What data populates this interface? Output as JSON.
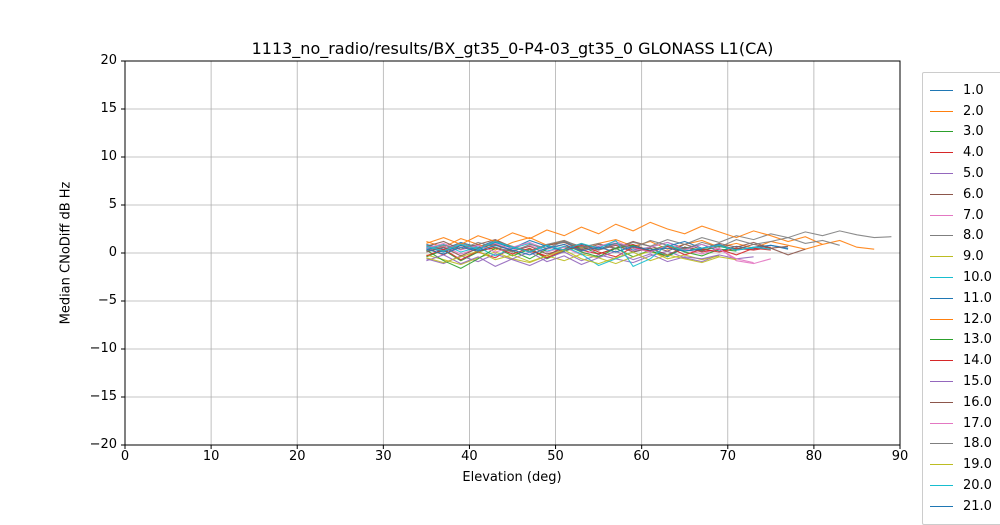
{
  "figure": {
    "title": "1113_no_radio/results/BX_gt35_0-P4-03_gt35_0 GLONASS L1(CA)",
    "xlabel": "Elevation (deg)",
    "ylabel": "Median CNoDiff dB Hz"
  },
  "style": {
    "grid_color": "#b0b0b0",
    "spine_color": "#000000",
    "legend_border_color": "#cccccc",
    "background_color": "#ffffff"
  },
  "chart_data": {
    "type": "line",
    "title": "1113_no_radio/results/BX_gt35_0-P4-03_gt35_0 GLONASS L1(CA)",
    "xlabel": "Elevation (deg)",
    "ylabel": "Median CNoDiff dB Hz",
    "xlim": [
      0,
      90
    ],
    "ylim": [
      -20,
      20
    ],
    "x_ticks": [
      0,
      10,
      20,
      30,
      40,
      50,
      60,
      70,
      80,
      90
    ],
    "x_tick_labels": [
      "0",
      "10",
      "20",
      "30",
      "40",
      "50",
      "60",
      "70",
      "80",
      "90"
    ],
    "y_ticks": [
      -20,
      -15,
      -10,
      -5,
      0,
      5,
      10,
      15,
      20
    ],
    "y_tick_labels": [
      "−20",
      "−15",
      "−10",
      "−5",
      "0",
      "5",
      "10",
      "15",
      "20"
    ],
    "grid": true,
    "legend_position": "outside-right",
    "x_start": 35,
    "x_step": 2,
    "series": [
      {
        "name": "1.0",
        "color": "#1f77b4",
        "y": [
          0.9,
          0.4,
          1.1,
          0.6,
          1.3,
          0.5,
          0.2,
          0.8,
          1.2,
          0.4,
          0.7,
          1.0,
          0.3,
          0.6,
          1.1,
          0.5,
          0.9,
          0.2,
          0.7,
          0.4,
          0.8,
          0.5
        ]
      },
      {
        "name": "2.0",
        "color": "#ff7f0e",
        "y": [
          1.2,
          0.6,
          1.5,
          0.9,
          0.3,
          1.1,
          1.6,
          0.8,
          1.3,
          0.5,
          1.0,
          1.4,
          0.7,
          1.2,
          0.4,
          0.9,
          1.3,
          0.6,
          1.0,
          0.5,
          1.2,
          0.8,
          0.4,
          0.9
        ]
      },
      {
        "name": "3.0",
        "color": "#2ca02c",
        "y": [
          -0.4,
          0.3,
          -0.8,
          0.1,
          0.6,
          -0.3,
          0.4,
          -0.6,
          0.2,
          0.7,
          -0.1,
          0.5,
          -0.4,
          0.3,
          0.8,
          0.1,
          -0.3,
          0.4,
          0.2
        ]
      },
      {
        "name": "4.0",
        "color": "#d62728",
        "y": [
          0.5,
          -0.2,
          0.8,
          0.1,
          -0.5,
          0.6,
          0.2,
          -0.3,
          0.7,
          0.3,
          -0.1,
          0.5,
          0.9,
          0.2,
          -0.4,
          0.6,
          0.1,
          0.4,
          -0.2,
          0.5,
          0.3
        ]
      },
      {
        "name": "5.0",
        "color": "#9467bd",
        "y": [
          -0.6,
          -1.1,
          -0.3,
          -0.9,
          -0.1,
          -0.7,
          -1.3,
          -0.5,
          0.1,
          -0.8,
          -0.2,
          -0.6,
          -1.0,
          -0.3,
          0.2,
          -0.5,
          -0.9,
          -0.2,
          -0.6,
          -0.4
        ]
      },
      {
        "name": "6.0",
        "color": "#8c564b",
        "y": [
          0.7,
          1.2,
          0.4,
          0.9,
          1.4,
          0.6,
          0.1,
          0.8,
          1.1,
          0.3,
          0.9,
          0.5,
          1.2,
          0.7,
          0.2,
          0.9,
          0.4,
          1.0,
          0.6,
          1.1,
          0.5,
          -0.2,
          0.4
        ]
      },
      {
        "name": "7.0",
        "color": "#e377c2",
        "y": [
          0.2,
          0.7,
          -0.1,
          0.5,
          1.0,
          0.3,
          0.8,
          0.1,
          0.6,
          -0.2,
          0.4,
          0.9,
          0.2,
          0.6,
          1.1,
          0.4,
          -0.1,
          0.5,
          -0.8,
          -1.1,
          -0.6
        ]
      },
      {
        "name": "8.0",
        "color": "#7f7f7f",
        "y": [
          0.8,
          0.3,
          1.0,
          0.5,
          1.2,
          0.7,
          0.2,
          0.9,
          1.3,
          0.6,
          1.0,
          0.4,
          1.1,
          0.7,
          1.4,
          0.9,
          1.6,
          1.1,
          1.8,
          1.4,
          2.0,
          1.6,
          2.2,
          1.8,
          2.3,
          1.9,
          1.6,
          1.7
        ]
      },
      {
        "name": "9.0",
        "color": "#bcbd22",
        "y": [
          -0.2,
          -0.7,
          -1.2,
          -0.5,
          0.1,
          -0.6,
          -1.0,
          -0.3,
          -0.8,
          -0.1,
          -0.5,
          -1.1,
          -0.4,
          0.2,
          -0.6,
          -0.2,
          -0.7,
          -0.3
        ]
      },
      {
        "name": "10.0",
        "color": "#17becf",
        "y": [
          0.4,
          0.9,
          0.1,
          0.6,
          -0.3,
          0.5,
          1.0,
          0.2,
          0.7,
          -0.1,
          -1.3,
          -0.6,
          0.1,
          0.5,
          -0.4,
          0.6,
          0.2,
          0.7,
          0.3,
          0.5
        ]
      },
      {
        "name": "11.0",
        "color": "#1f77b4",
        "y": [
          0.6,
          0.1,
          0.8,
          0.3,
          1.1,
          0.5,
          1.3,
          0.7,
          0.2,
          0.9,
          0.4,
          1.0,
          0.6,
          0.1,
          0.7,
          1.2,
          0.5,
          0.9,
          0.3,
          0.6,
          0.8,
          0.4
        ]
      },
      {
        "name": "12.0",
        "color": "#ff7f0e",
        "y": [
          1.0,
          1.6,
          0.9,
          1.8,
          1.2,
          2.1,
          1.5,
          2.4,
          1.8,
          2.7,
          2.0,
          3.0,
          2.3,
          3.2,
          2.5,
          2.0,
          2.8,
          2.2,
          1.6,
          2.3,
          1.8,
          1.2,
          1.7,
          0.9,
          1.3,
          0.6,
          0.4
        ]
      },
      {
        "name": "13.0",
        "color": "#2ca02c",
        "y": [
          0.3,
          -0.8,
          -1.6,
          -0.6,
          0.5,
          0.2,
          -0.6,
          0.4,
          0.9,
          0.1,
          -0.4,
          0.5,
          0.8,
          0.2,
          -0.3,
          0.6,
          0.3,
          0.7,
          0.4
        ]
      },
      {
        "name": "14.0",
        "color": "#d62728",
        "y": [
          -0.3,
          0.4,
          -0.7,
          0.2,
          0.6,
          -0.1,
          0.5,
          -0.5,
          0.3,
          0.8,
          0.1,
          -0.4,
          0.6,
          0.2,
          0.7,
          -0.2,
          0.4,
          0.1,
          0.5,
          0.3,
          0.6
        ]
      },
      {
        "name": "15.0",
        "color": "#9467bd",
        "y": [
          -0.8,
          -0.2,
          -1.1,
          -0.4,
          -1.4,
          -0.6,
          0.1,
          -0.9,
          -0.3,
          -1.2,
          -0.5,
          0.2,
          -0.7,
          -0.1,
          -0.9,
          -0.4,
          -0.6,
          -0.2
        ]
      },
      {
        "name": "16.0",
        "color": "#8c564b",
        "y": [
          0.1,
          0.6,
          -0.3,
          0.5,
          0.9,
          0.2,
          0.7,
          -0.1,
          0.4,
          1.0,
          0.3,
          0.8,
          0.1,
          0.5,
          -0.2,
          0.6,
          0.2,
          0.8,
          0.4,
          0.9,
          0.5,
          0.7
        ]
      },
      {
        "name": "17.0",
        "color": "#e377c2",
        "y": [
          0.5,
          1.0,
          0.3,
          0.8,
          0.1,
          0.6,
          1.1,
          0.4,
          0.9,
          0.2,
          0.7,
          1.2,
          0.5,
          0.1,
          0.8,
          0.3,
          0.9,
          0.4,
          -0.6,
          -1.0
        ]
      },
      {
        "name": "18.0",
        "color": "#7f7f7f",
        "y": [
          0.2,
          0.8,
          0.4,
          1.1,
          0.6,
          0.1,
          0.9,
          0.5,
          1.2,
          0.7,
          0.3,
          1.0,
          0.5,
          1.3,
          0.8,
          0.4,
          1.1,
          0.6,
          1.4,
          0.9,
          1.2,
          1.6,
          1.0,
          1.3,
          0.8
        ]
      },
      {
        "name": "19.0",
        "color": "#bcbd22",
        "y": [
          -0.5,
          -1.0,
          -0.4,
          0.2,
          -0.7,
          -0.2,
          -0.9,
          -0.3,
          0.3,
          -0.6,
          -1.1,
          -0.5,
          0.1,
          -0.8,
          -0.2,
          -0.6,
          -1.0,
          -0.4,
          -0.7
        ]
      },
      {
        "name": "20.0",
        "color": "#17becf",
        "y": [
          0.7,
          0.2,
          0.9,
          0.4,
          1.2,
          0.6,
          0.1,
          0.8,
          0.3,
          1.0,
          0.5,
          1.3,
          -1.4,
          -0.6,
          0.9,
          0.2,
          0.5,
          0.8,
          0.3,
          0.6,
          0.4
        ]
      },
      {
        "name": "21.0",
        "color": "#1f77b4",
        "y": [
          0.4,
          -0.1,
          0.6,
          0.2,
          0.8,
          0.3,
          -0.2,
          0.5,
          0.9,
          0.2,
          0.6,
          0.1,
          0.7,
          0.3,
          0.5,
          0.2,
          0.4
        ]
      }
    ]
  }
}
